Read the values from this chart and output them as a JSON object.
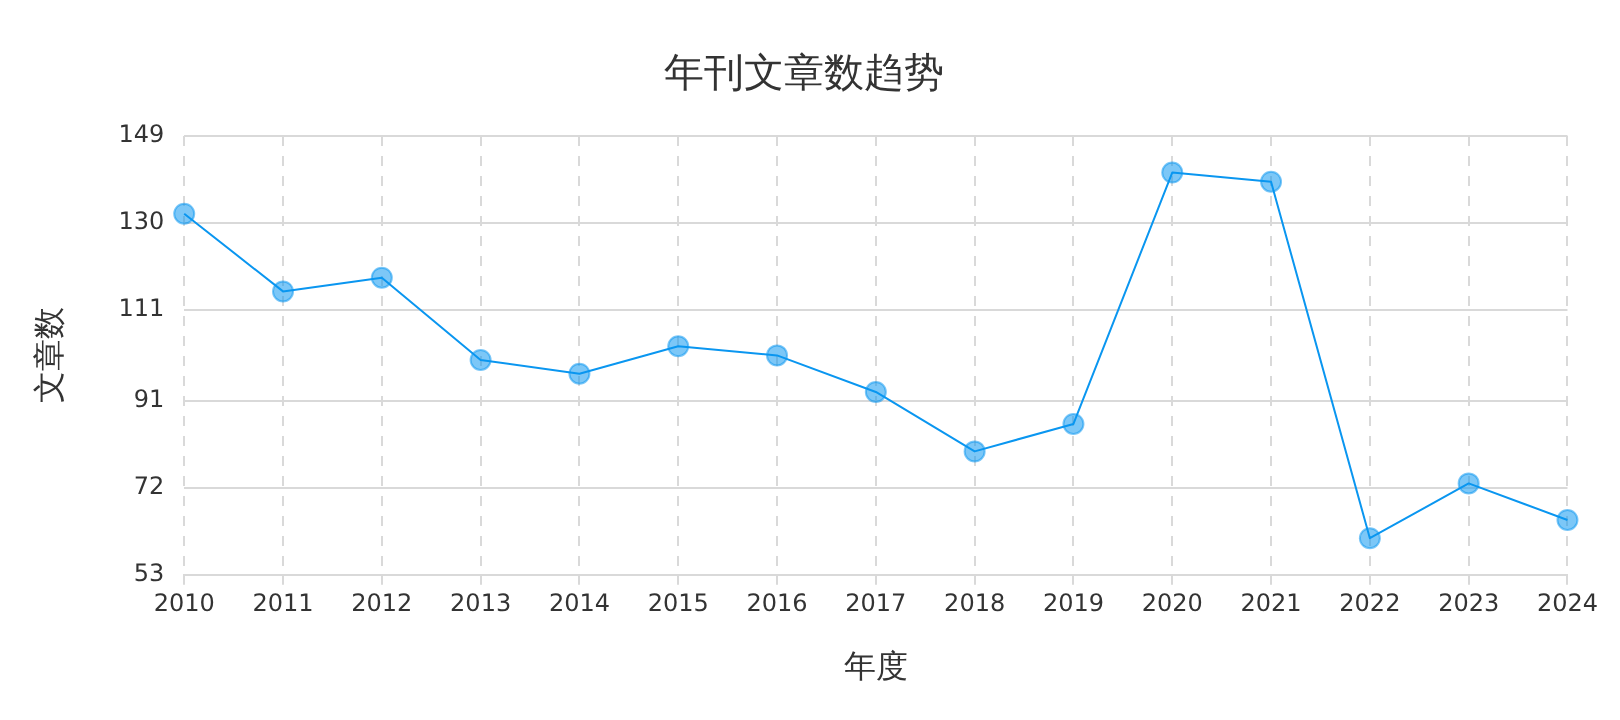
{
  "chart_data": {
    "type": "line",
    "title": "年刊文章数趋势",
    "xlabel": "年度",
    "ylabel": "文章数",
    "categories": [
      "2010",
      "2011",
      "2012",
      "2013",
      "2014",
      "2015",
      "2016",
      "2017",
      "2018",
      "2019",
      "2020",
      "2021",
      "2022",
      "2023",
      "2024"
    ],
    "series": [
      {
        "color": "#0a96f0",
        "values": [
          132,
          115,
          118,
          100,
          97,
          103,
          101,
          93,
          80,
          86,
          141,
          139,
          61,
          73,
          65
        ]
      }
    ],
    "ylim": [
      53,
      149
    ],
    "yticks": [
      53,
      72,
      91,
      111,
      130,
      149
    ],
    "grid": true,
    "marker": "circle",
    "line_style": "solid",
    "legend": false
  }
}
